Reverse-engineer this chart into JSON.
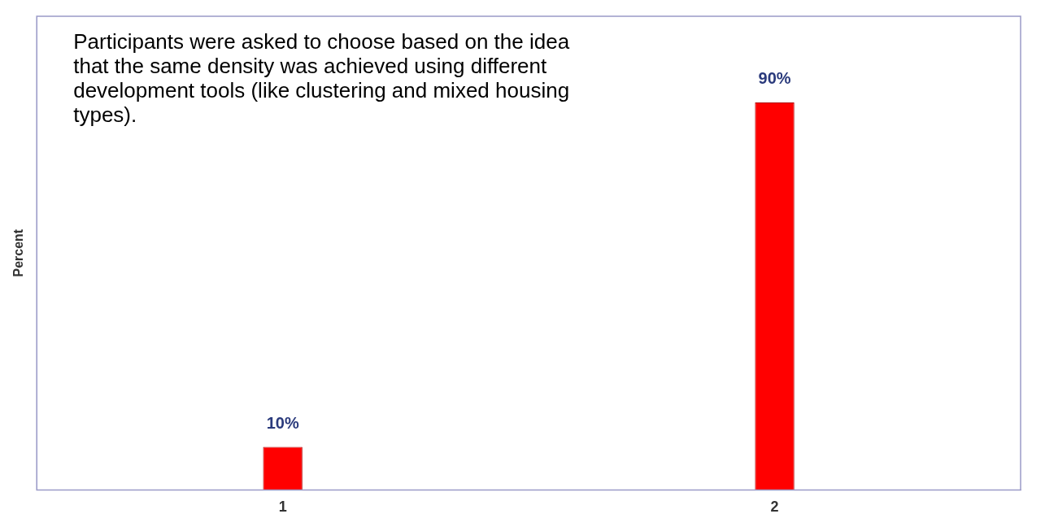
{
  "chart_data": {
    "type": "bar",
    "ylabel": "Percent",
    "categories": [
      "1",
      "2"
    ],
    "values": [
      10,
      90
    ],
    "value_labels": [
      "10%",
      "90%"
    ],
    "color": "#ff0000",
    "ylim": [
      0,
      110
    ],
    "tick_labels": "x",
    "grid": false,
    "legend": false,
    "annotations": [
      "Participants were asked to choose based on the idea that the same density was achieved using different development tools (like clustering and mixed housing types)."
    ]
  }
}
